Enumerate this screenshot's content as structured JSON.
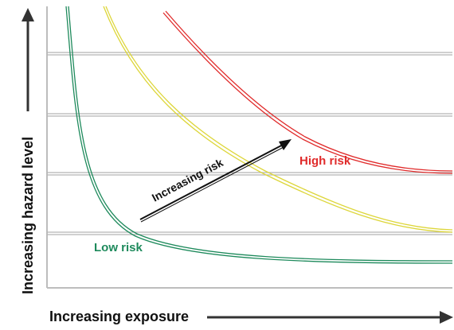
{
  "chart_data": {
    "type": "line",
    "title": "",
    "xlabel": "Increasing exposure",
    "ylabel": "Increasing hazard level",
    "grid": true,
    "series": [
      {
        "name": "Low risk",
        "color": "#1e8a5c"
      },
      {
        "name": "",
        "color": "#ddd63a"
      },
      {
        "name": "High risk",
        "color": "#e02b2b"
      }
    ],
    "annotations": [
      {
        "text": "Increasing risk",
        "type": "arrow"
      }
    ]
  },
  "colors": {
    "axis": "#333333",
    "gridline": "#b5b5b5",
    "frame": "#bdbdbd",
    "arrow": "#111111"
  }
}
